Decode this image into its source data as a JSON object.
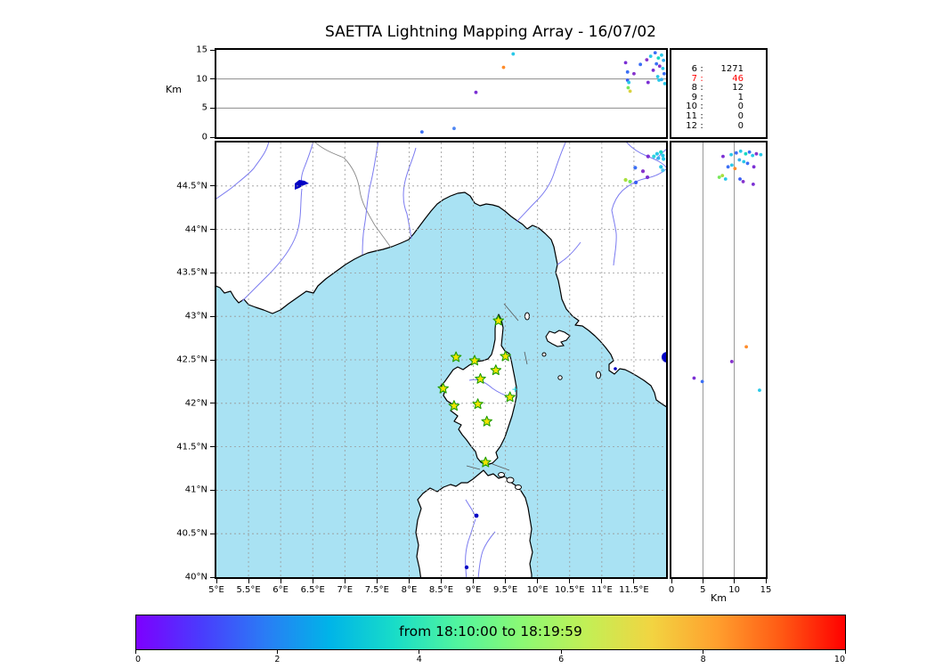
{
  "title": "SAETTA Lightning Mapping Array - 16/07/02",
  "colors": {
    "sea": "#a9e2f3",
    "land": "#ffffff",
    "coast": "#000000",
    "river": "#7b7bf0",
    "country_border": "#8a8a8a",
    "lake": "#0000c4",
    "grid_dashed": "#999999",
    "grid_solid": "#7a7a7a",
    "station_fill": "#f2e400",
    "station_edge": "#1f9e00",
    "highlight_red": "#ff0000"
  },
  "chart_data": [
    {
      "id": "altitude_vs_longitude",
      "type": "scatter",
      "ylabel": "Km",
      "xlim": [
        5,
        12
      ],
      "ylim": [
        0,
        15
      ],
      "yticks": [
        0,
        5,
        10,
        15
      ],
      "ygrid": [
        5,
        10
      ],
      "points": [
        [
          9.47,
          12.0,
          "#ff8c2a"
        ],
        [
          9.62,
          14.3,
          "#29c8e8"
        ],
        [
          9.04,
          7.7,
          "#7b2fd4"
        ],
        [
          8.2,
          0.9,
          "#3b6ff5"
        ],
        [
          8.7,
          1.5,
          "#4f86f2"
        ],
        [
          11.37,
          12.8,
          "#7b2fd4"
        ],
        [
          11.4,
          11.2,
          "#3b6ff5"
        ],
        [
          11.5,
          10.9,
          "#8633cc"
        ],
        [
          11.4,
          9.8,
          "#3b5ef5"
        ],
        [
          11.42,
          9.4,
          "#29c8e8"
        ],
        [
          11.41,
          8.5,
          "#79e85c"
        ],
        [
          11.44,
          7.9,
          "#d9d23e"
        ],
        [
          11.72,
          9.4,
          "#7b2fd4"
        ],
        [
          11.89,
          9.8,
          "#29c8e8"
        ],
        [
          11.76,
          13.9,
          "#29c8e8"
        ],
        [
          11.83,
          14.5,
          "#3b6ff5"
        ],
        [
          11.88,
          13.6,
          "#16d9c2"
        ],
        [
          11.93,
          14.1,
          "#29c8e8"
        ],
        [
          11.96,
          13.2,
          "#35b1f0"
        ],
        [
          11.85,
          12.6,
          "#3b6ff5"
        ],
        [
          11.9,
          12.2,
          "#8633cc"
        ],
        [
          11.95,
          11.8,
          "#29c8e8"
        ],
        [
          11.8,
          11.5,
          "#7b2fd4"
        ],
        [
          11.97,
          10.9,
          "#3b6ff5"
        ],
        [
          11.87,
          10.4,
          "#29c8e8"
        ],
        [
          11.93,
          9.9,
          "#35b1f0"
        ],
        [
          11.98,
          9.2,
          "#29c8e8"
        ],
        [
          11.7,
          13.3,
          "#8633cc"
        ],
        [
          11.6,
          12.5,
          "#3b6ff5"
        ]
      ]
    },
    {
      "id": "source_counts_by_altitude",
      "type": "table",
      "rows": [
        [
          "6",
          "1271"
        ],
        [
          "7",
          "46"
        ],
        [
          "8",
          "12"
        ],
        [
          "9",
          "1"
        ],
        [
          "10",
          "0"
        ],
        [
          "11",
          "0"
        ],
        [
          "12",
          "0"
        ]
      ],
      "highlight_row_index": 1,
      "highlight_color": "#ff0000"
    },
    {
      "id": "map_plan_view",
      "type": "scatter",
      "xlim": [
        5,
        12
      ],
      "ylim": [
        40,
        45
      ],
      "xticks": [
        5,
        5.5,
        6,
        6.5,
        7,
        7.5,
        8,
        8.5,
        9,
        9.5,
        10,
        10.5,
        11,
        11.5
      ],
      "xtick_labels": [
        "5°E",
        "5.5°E",
        "6°E",
        "6.5°E",
        "7°E",
        "7.5°E",
        "8°E",
        "8.5°E",
        "9°E",
        "9.5°E",
        "10°E",
        "10.5°E",
        "11°E",
        "11.5°E"
      ],
      "yticks": [
        40,
        40.5,
        41,
        41.5,
        42,
        42.5,
        43,
        43.5,
        44,
        44.5
      ],
      "ytick_labels": [
        "40°N",
        "40.5°N",
        "41°N",
        "41.5°N",
        "42°N",
        "42.5°N",
        "43°N",
        "43.5°N",
        "44°N",
        "44.5°N"
      ],
      "grid": "dashed",
      "stations": [
        [
          9.39,
          42.95
        ],
        [
          8.73,
          42.53
        ],
        [
          9.02,
          42.49
        ],
        [
          9.5,
          42.54
        ],
        [
          9.35,
          42.38
        ],
        [
          9.11,
          42.28
        ],
        [
          8.53,
          42.17
        ],
        [
          9.57,
          42.07
        ],
        [
          8.7,
          41.97
        ],
        [
          9.07,
          41.99
        ],
        [
          9.21,
          41.79
        ],
        [
          9.19,
          41.32
        ]
      ],
      "points": [
        [
          11.72,
          44.84,
          "#7b2fd4"
        ],
        [
          11.86,
          44.87,
          "#29c8e8"
        ],
        [
          11.92,
          44.89,
          "#16d9c2"
        ],
        [
          11.95,
          44.85,
          "#29c8e8"
        ],
        [
          11.88,
          44.82,
          "#35b1f0"
        ],
        [
          11.96,
          44.81,
          "#29c8e8"
        ],
        [
          11.81,
          44.84,
          "#2bd4de"
        ],
        [
          11.52,
          44.71,
          "#3b6ff5"
        ],
        [
          11.92,
          44.72,
          "#29c8e8"
        ],
        [
          11.95,
          44.68,
          "#52c7f0"
        ],
        [
          11.71,
          44.6,
          "#7b2fd4"
        ],
        [
          11.64,
          44.67,
          "#8633cc"
        ],
        [
          11.37,
          44.57,
          "#a8e03c"
        ],
        [
          11.44,
          44.55,
          "#79e85c"
        ],
        [
          11.53,
          44.54,
          "#3b5ef5"
        ],
        [
          9.65,
          42.16,
          "#22d3e0",
          "plus"
        ]
      ]
    },
    {
      "id": "altitude_vs_latitude",
      "type": "scatter",
      "xlabel": "Km",
      "xlim": [
        0,
        15
      ],
      "ylim": [
        40,
        45
      ],
      "xticks": [
        0,
        5,
        10,
        15
      ],
      "xgrid": [
        5,
        10
      ],
      "points": [
        [
          8.2,
          44.84,
          "#7b2fd4"
        ],
        [
          9.5,
          44.86,
          "#29c8e8"
        ],
        [
          10.3,
          44.88,
          "#3b6ff5"
        ],
        [
          11.0,
          44.9,
          "#29c8e8"
        ],
        [
          11.8,
          44.87,
          "#16d9c2"
        ],
        [
          12.4,
          44.89,
          "#3b6ff5"
        ],
        [
          12.9,
          44.85,
          "#29c8e8"
        ],
        [
          13.5,
          44.87,
          "#8633cc"
        ],
        [
          14.2,
          44.86,
          "#29c8e8"
        ],
        [
          10.8,
          44.8,
          "#35b1f0"
        ],
        [
          11.5,
          44.78,
          "#29c8e8"
        ],
        [
          12.1,
          44.76,
          "#3b6ff5"
        ],
        [
          9.0,
          44.72,
          "#3b6ff5"
        ],
        [
          9.6,
          44.74,
          "#29c8e8"
        ],
        [
          10.1,
          44.7,
          "#ff8c2a"
        ],
        [
          13.1,
          44.72,
          "#7b2fd4"
        ],
        [
          7.6,
          44.6,
          "#79e85c"
        ],
        [
          8.1,
          44.62,
          "#a8e03c"
        ],
        [
          8.6,
          44.58,
          "#29c8e8"
        ],
        [
          10.9,
          44.58,
          "#3b5ef5"
        ],
        [
          11.4,
          44.55,
          "#8633cc"
        ],
        [
          13.0,
          44.52,
          "#7b2fd4"
        ],
        [
          3.6,
          42.29,
          "#7b2fd4"
        ],
        [
          4.9,
          42.25,
          "#3b6ff5"
        ],
        [
          9.6,
          42.48,
          "#8633cc"
        ],
        [
          11.9,
          42.65,
          "#ff8c2a"
        ],
        [
          14.0,
          42.15,
          "#29c8e8"
        ]
      ]
    },
    {
      "id": "time_colorbar",
      "type": "colorbar",
      "label": "from 18:10:00 to 18:19:59",
      "range": [
        0,
        10
      ],
      "ticks": [
        0,
        2,
        4,
        6,
        8,
        10
      ],
      "gradient": [
        "#7d00ff",
        "#4a3bfd",
        "#2a7cf5",
        "#00b4e8",
        "#18dcc8",
        "#52f59e",
        "#8cf973",
        "#c3ef55",
        "#f2d441",
        "#ffa02e",
        "#ff5a14",
        "#ff0000"
      ]
    }
  ]
}
